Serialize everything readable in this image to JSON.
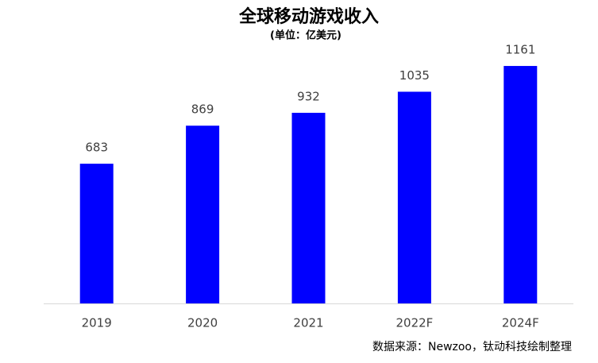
{
  "chart_data": {
    "type": "bar",
    "title": "全球移动游戏收入",
    "subtitle": "(单位：亿美元)",
    "categories": [
      "2019",
      "2020",
      "2021",
      "2022F",
      "2024F"
    ],
    "values": [
      683,
      869,
      932,
      1035,
      1161
    ],
    "color": "#0000ff",
    "ylim": [
      0,
      1400
    ],
    "source": "数据来源：Newzoo，钛动科技绘制整理"
  }
}
